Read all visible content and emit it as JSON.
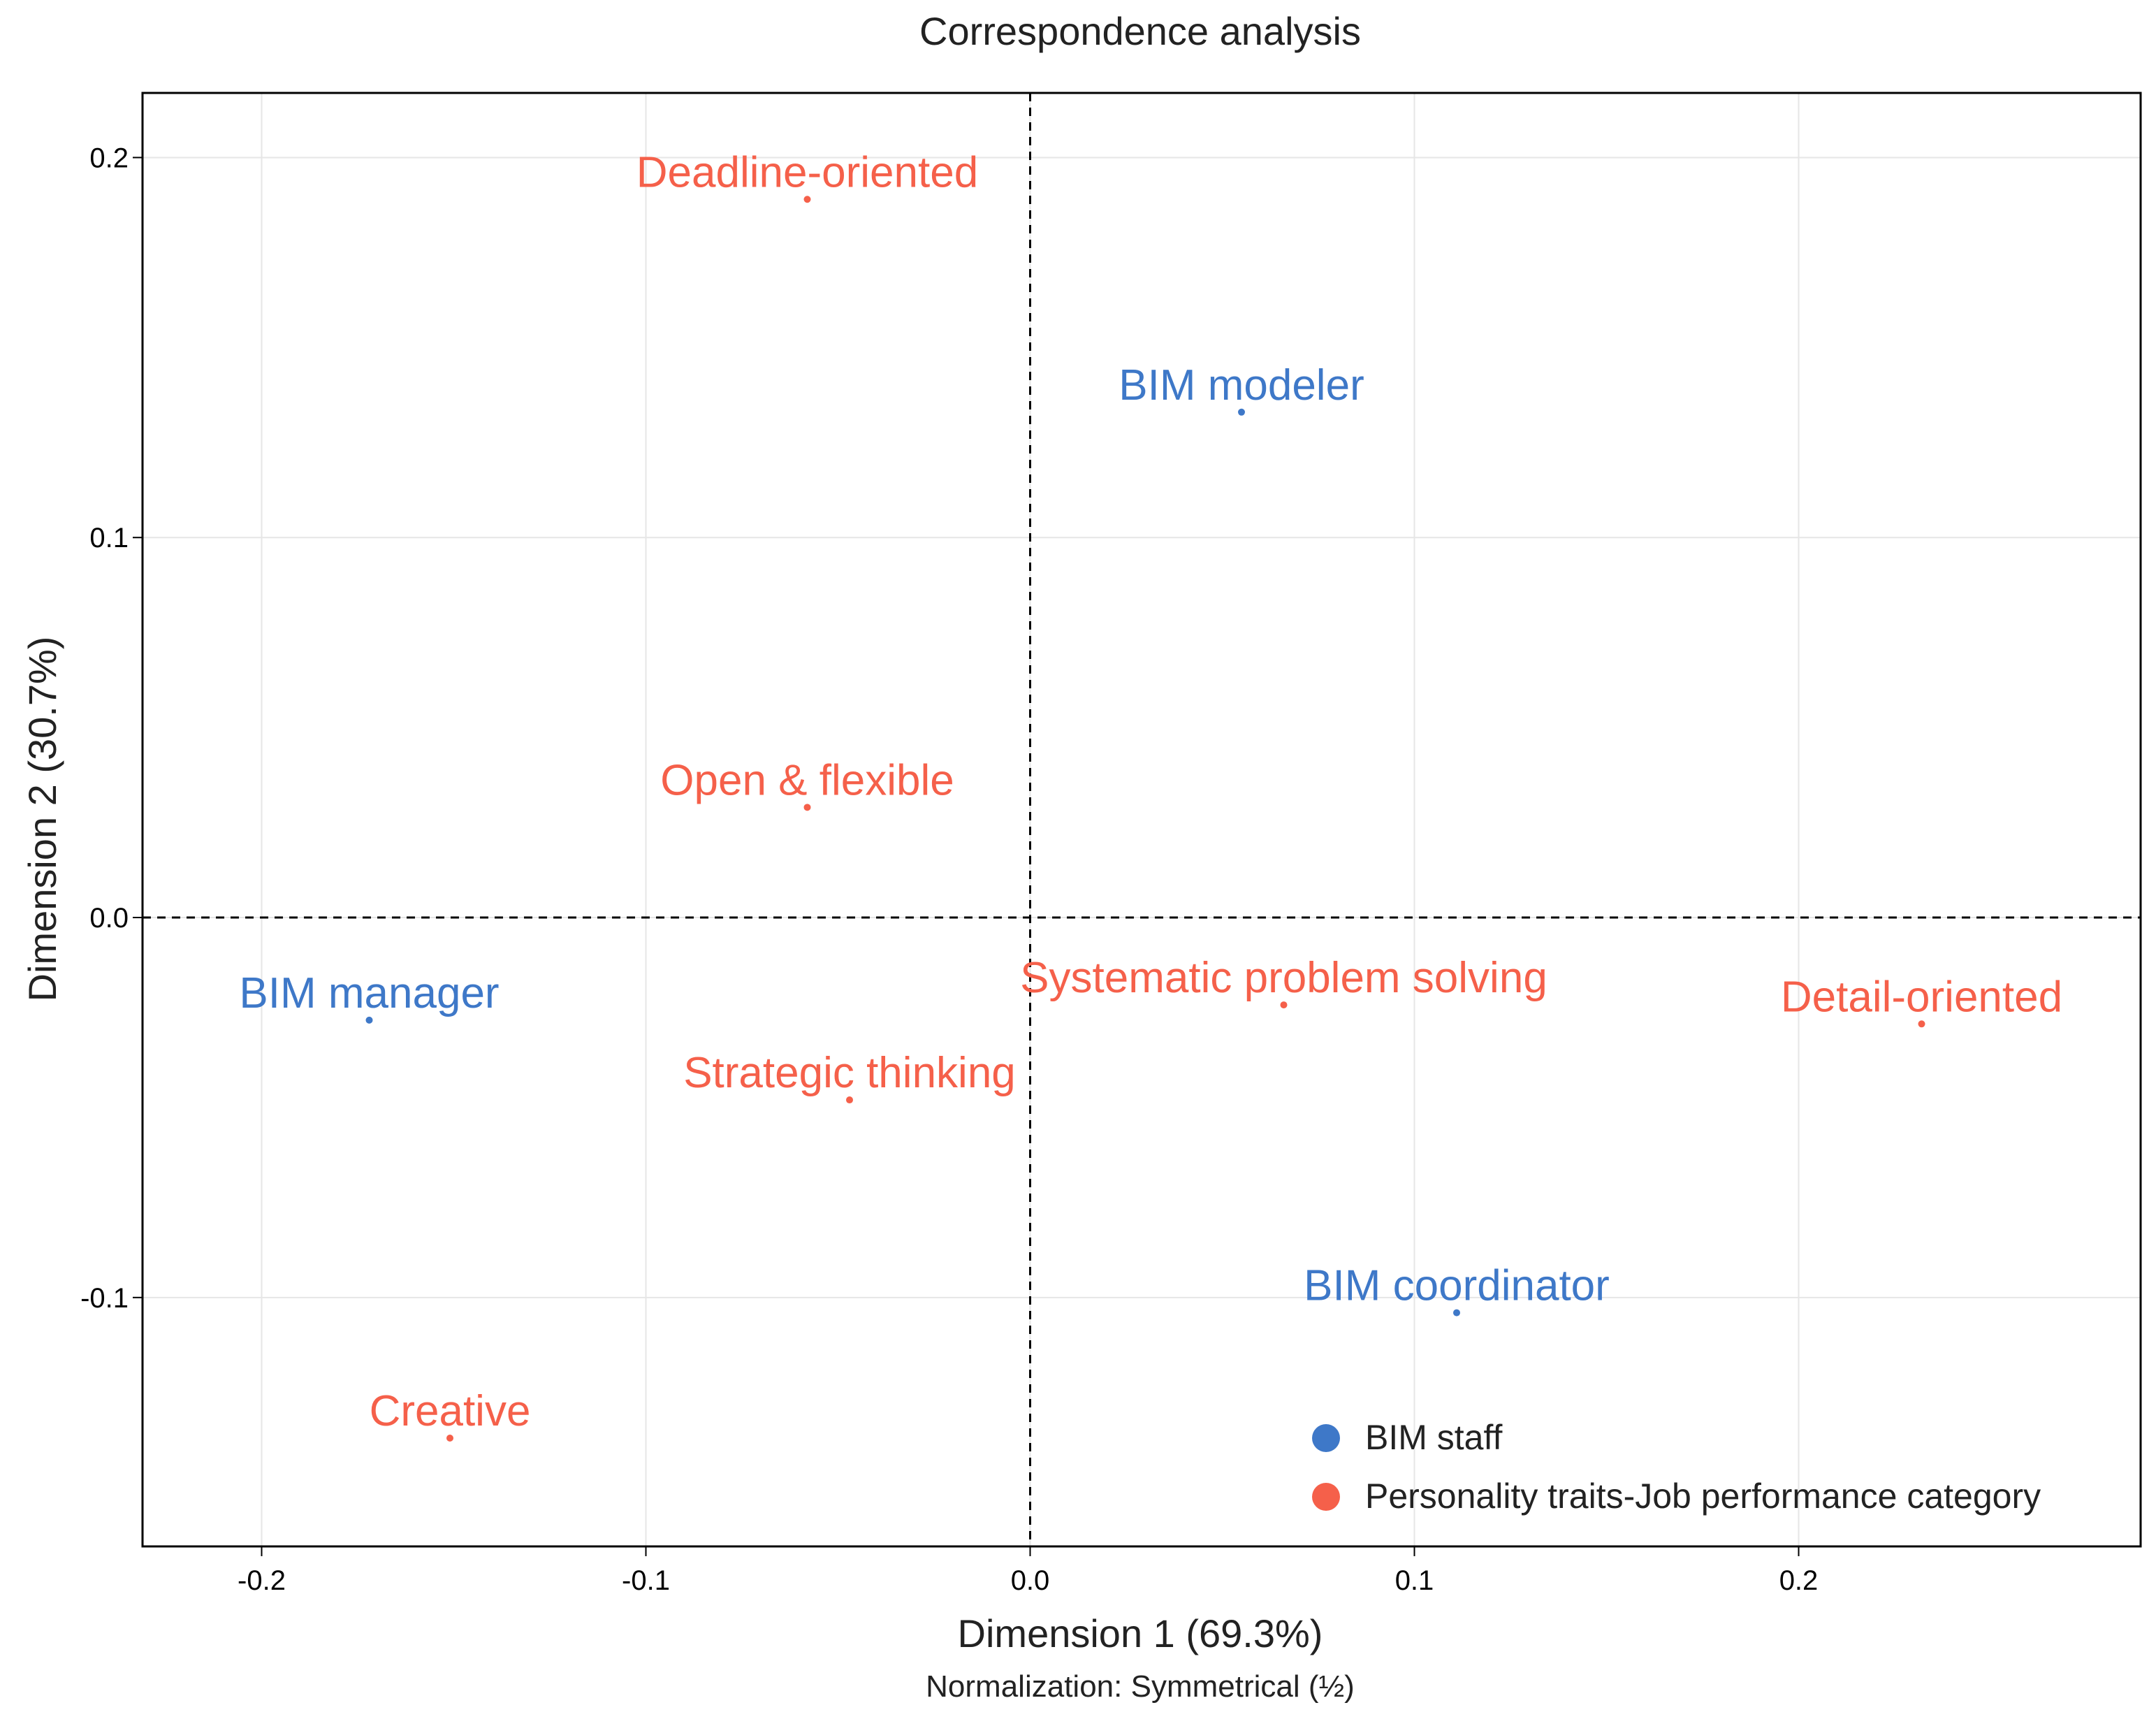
{
  "colors": {
    "staff": "#3E78C8",
    "traits": "#F5604A",
    "grid": "#E6E6E6",
    "axis": "#000000",
    "text": "#222222"
  },
  "chart_data": {
    "type": "scatter",
    "title": "Correspondence analysis",
    "xlabel": "Dimension 1 (69.3%)",
    "ylabel": "Dimension 2 (30.7%)",
    "subtitle": "Normalization: Symmetrical (½)",
    "xlim": [
      -0.231,
      0.289
    ],
    "ylim": [
      -0.1655,
      0.217
    ],
    "xticks": [
      -0.2,
      -0.1,
      0.0,
      0.1,
      0.2
    ],
    "xtick_labels": [
      "-0.2",
      "-0.1",
      "0.0",
      "0.1",
      "0.2"
    ],
    "yticks": [
      -0.1,
      0.0,
      0.1,
      0.2
    ],
    "ytick_labels": [
      "-0.1",
      "0.0",
      "0.1",
      "0.2"
    ],
    "grid": true,
    "reference_lines": {
      "x": 0,
      "y": 0,
      "style": "dashed"
    },
    "legend_position": "bottom-right",
    "series": [
      {
        "name": "BIM staff",
        "color_key": "staff",
        "points": [
          {
            "label": "BIM modeler",
            "x": 0.055,
            "y": 0.133
          },
          {
            "label": "BIM manager",
            "x": -0.172,
            "y": -0.027
          },
          {
            "label": "BIM coordinator",
            "x": 0.111,
            "y": -0.104
          }
        ]
      },
      {
        "name": "Personality traits-Job performance category",
        "color_key": "traits",
        "points": [
          {
            "label": "Deadline-oriented",
            "x": -0.058,
            "y": 0.189
          },
          {
            "label": "Open & flexible",
            "x": -0.058,
            "y": 0.029
          },
          {
            "label": "Systematic problem solving",
            "x": 0.066,
            "y": -0.023
          },
          {
            "label": "Detail-oriented",
            "x": 0.232,
            "y": -0.028
          },
          {
            "label": "Strategic thinking",
            "x": -0.047,
            "y": -0.048
          },
          {
            "label": "Creative",
            "x": -0.151,
            "y": -0.137
          }
        ]
      }
    ]
  }
}
